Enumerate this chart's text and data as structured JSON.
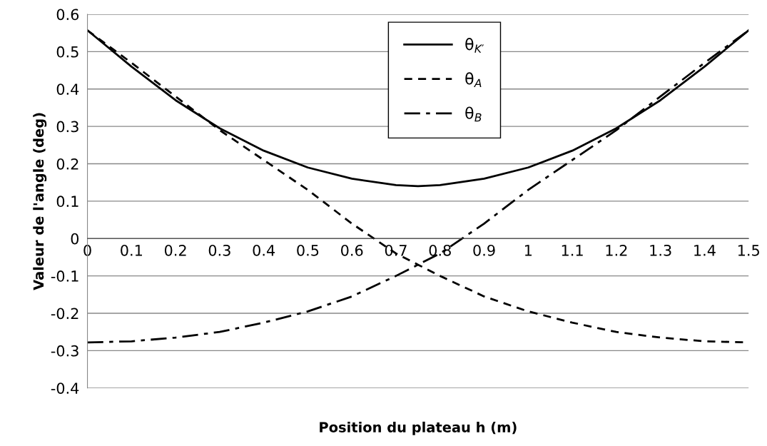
{
  "chart_data": {
    "type": "line",
    "xlabel": "Position du plateau h (m)",
    "ylabel": "Valeur de l'angle (deg)",
    "x": [
      0,
      0.1,
      0.2,
      0.3,
      0.4,
      0.5,
      0.6,
      0.7,
      0.75,
      0.8,
      0.9,
      1.0,
      1.1,
      1.2,
      1.3,
      1.4,
      1.5
    ],
    "series": [
      {
        "name": "θ$_{K′}$",
        "color": "#000000",
        "line_style": "solid",
        "values": [
          0.557,
          0.46,
          0.37,
          0.295,
          0.235,
          0.19,
          0.16,
          0.143,
          0.14,
          0.143,
          0.16,
          0.19,
          0.235,
          0.295,
          0.37,
          0.46,
          0.557
        ]
      },
      {
        "name": "θ$_{A}$",
        "color": "#000000",
        "line_style": "dashed",
        "values": [
          0.557,
          0.47,
          0.38,
          0.29,
          0.21,
          0.13,
          0.04,
          -0.04,
          -0.07,
          -0.1,
          -0.155,
          -0.195,
          -0.225,
          -0.25,
          -0.265,
          -0.275,
          -0.278
        ]
      },
      {
        "name": "θ$_{B}$",
        "color": "#000000",
        "line_style": "dashdot",
        "values": [
          -0.278,
          -0.275,
          -0.265,
          -0.25,
          -0.225,
          -0.195,
          -0.155,
          -0.1,
          -0.07,
          -0.04,
          0.04,
          0.13,
          0.21,
          0.29,
          0.38,
          0.47,
          0.557
        ]
      }
    ],
    "xlim": [
      0,
      1.5
    ],
    "xticks": [
      0,
      0.1,
      0.2,
      0.3,
      0.4,
      0.5,
      0.6,
      0.7,
      0.8,
      0.9,
      1,
      1.1,
      1.2,
      1.3,
      1.4,
      1.5
    ],
    "ylim": [
      -0.4,
      0.6
    ],
    "yticks": [
      -0.4,
      -0.3,
      -0.2,
      -0.1,
      0,
      0.1,
      0.2,
      0.3,
      0.4,
      0.5,
      0.6
    ],
    "grid": "y",
    "legend": "top",
    "marker": "none"
  }
}
